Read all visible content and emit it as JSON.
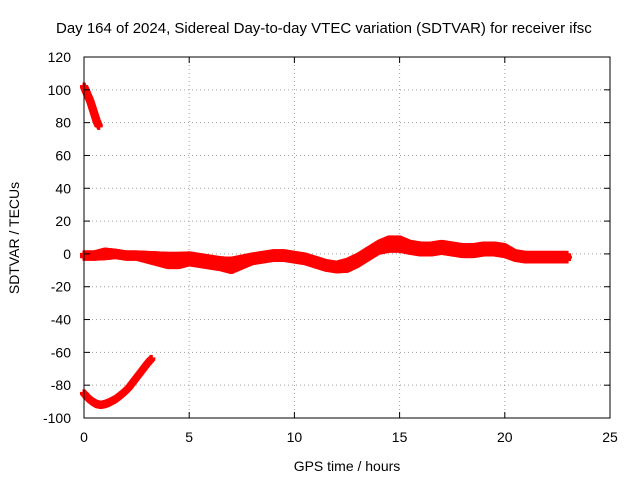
{
  "chart_data": {
    "type": "scatter",
    "title": "Day 164 of 2024, Sidereal Day-to-day VTEC variation (SDTVAR) for receiver ifsc",
    "xlabel": "GPS time / hours",
    "ylabel": "SDTVAR / TECUs",
    "xlim": [
      0,
      25
    ],
    "ylim": [
      -100,
      120
    ],
    "x_ticks": [
      0,
      5,
      10,
      15,
      20,
      25
    ],
    "y_ticks": [
      -100,
      -80,
      -60,
      -40,
      -20,
      0,
      20,
      40,
      60,
      80,
      100,
      120
    ],
    "grid": true,
    "legend": "none",
    "marker": "plus",
    "color": "#ff0000",
    "series": [
      {
        "x": [
          0.0,
          0.1,
          0.2,
          0.3,
          0.4,
          0.5,
          0.6,
          0.7
        ],
        "y": [
          102,
          99,
          96,
          93,
          89,
          85,
          81,
          78
        ]
      },
      {
        "x": [
          0.0,
          0.2,
          0.4,
          0.6,
          0.8,
          1.0,
          1.2,
          1.5,
          1.8,
          2.1,
          2.4,
          2.7,
          3.0,
          3.2
        ],
        "y": [
          -85,
          -88,
          -90,
          -91.5,
          -92,
          -91.5,
          -90.5,
          -88.5,
          -85.5,
          -82,
          -77,
          -72,
          -67,
          -64
        ]
      },
      {
        "x": [
          0,
          0.5,
          1,
          1.5,
          2,
          2.5,
          3,
          3.5,
          4,
          4.5,
          5,
          5.5,
          6,
          6.5,
          7,
          7.5,
          8,
          8.5,
          9,
          9.5,
          10,
          10.5,
          11,
          11.5,
          12,
          12.5,
          13,
          13.5,
          14,
          14.5,
          15,
          15.5,
          16,
          16.5,
          17,
          17.5,
          18,
          18.5,
          19,
          19.5,
          20,
          20.5,
          21,
          21.5,
          22,
          22.5,
          23
        ],
        "y": [
          -1,
          -1,
          0,
          0,
          -1,
          -1,
          -2,
          -3,
          -4,
          -4,
          -3,
          -4,
          -5,
          -6,
          -7,
          -5,
          -3,
          -2,
          -1,
          -1,
          -2,
          -3,
          -5,
          -7,
          -8,
          -7,
          -4,
          0,
          4,
          6,
          6,
          4,
          3,
          3,
          4,
          3,
          2,
          2,
          3,
          3,
          2,
          -1,
          -2,
          -2,
          -2,
          -2,
          -2
        ],
        "y_spread": [
          1,
          1,
          2,
          1,
          1,
          1,
          2,
          3,
          4,
          4,
          3,
          3,
          3,
          3,
          4,
          3,
          2,
          2,
          2,
          2,
          2,
          2,
          2,
          2,
          2,
          3,
          3,
          3,
          3,
          4,
          4,
          3,
          3,
          3,
          3,
          3,
          3,
          3,
          3,
          3,
          3,
          2,
          2,
          2,
          2,
          2,
          2
        ]
      }
    ]
  }
}
